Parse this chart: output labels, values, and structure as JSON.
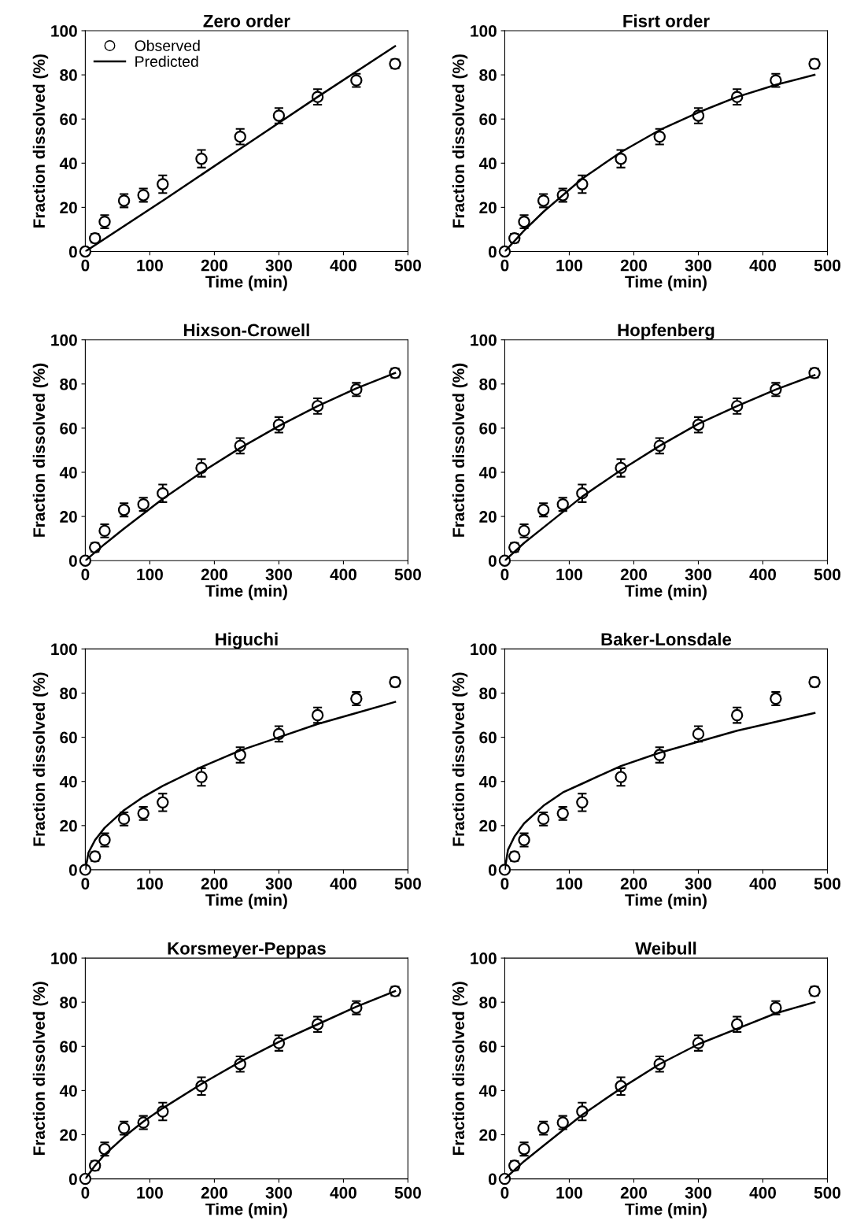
{
  "chart_data": [
    {
      "type": "line",
      "title": "Zero order",
      "xlabel": "Time (min)",
      "ylabel": "Fraction dissolved (%)",
      "xlim": [
        0,
        500
      ],
      "xticks": [
        0,
        100,
        200,
        300,
        400,
        500
      ],
      "ylim": [
        0,
        100
      ],
      "yticks": [
        0,
        20,
        40,
        60,
        80,
        100
      ],
      "grid": false,
      "legend": "top left",
      "series": [
        {
          "name": "Observed",
          "type": "scatter",
          "marker": "circle",
          "color": "#000000",
          "x": [
            0,
            15,
            30,
            60,
            90,
            120,
            180,
            240,
            300,
            360,
            420,
            480
          ],
          "values": [
            0,
            6,
            13.5,
            23,
            25.5,
            30.5,
            42,
            52,
            61.5,
            70,
            77.5,
            85
          ],
          "errors": [
            1,
            2,
            3,
            3,
            3,
            4,
            4,
            3.5,
            3.5,
            3.5,
            3,
            2
          ]
        },
        {
          "name": "Predicted",
          "marker": "none",
          "color": "#000000",
          "x": [
            0,
            120,
            240,
            360,
            480
          ],
          "values": [
            0,
            23,
            46.5,
            70,
            93
          ]
        }
      ]
    },
    {
      "type": "line",
      "title": "Fisrt order",
      "xlabel": "Time (min)",
      "ylabel": "Fraction dissolved (%)",
      "xlim": [
        0,
        500
      ],
      "xticks": [
        0,
        100,
        200,
        300,
        400,
        500
      ],
      "ylim": [
        0,
        100
      ],
      "yticks": [
        0,
        20,
        40,
        60,
        80,
        100
      ],
      "grid": false,
      "legend": false,
      "series": [
        {
          "type": "scatter",
          "marker": "circle",
          "color": "#000000",
          "x": [
            0,
            15,
            30,
            60,
            90,
            120,
            180,
            240,
            300,
            360,
            420,
            480
          ],
          "values": [
            0,
            6,
            13.5,
            23,
            25.5,
            30.5,
            42,
            52,
            61.5,
            70,
            77.5,
            85
          ],
          "errors": [
            1,
            2,
            3,
            3,
            3,
            4,
            4,
            3.5,
            3.5,
            3.5,
            3,
            2
          ]
        },
        {
          "marker": "none",
          "color": "#000000",
          "x": [
            0,
            30,
            60,
            120,
            180,
            240,
            300,
            360,
            420,
            480
          ],
          "values": [
            0,
            9.5,
            18,
            33,
            45,
            55,
            63,
            70,
            75.5,
            80
          ]
        }
      ]
    },
    {
      "type": "line",
      "title": "Hixson-Crowell",
      "xlabel": "Time (min)",
      "ylabel": "Fraction dissolved (%)",
      "xlim": [
        0,
        500
      ],
      "xticks": [
        0,
        100,
        200,
        300,
        400,
        500
      ],
      "ylim": [
        0,
        100
      ],
      "yticks": [
        0,
        20,
        40,
        60,
        80,
        100
      ],
      "grid": false,
      "legend": false,
      "series": [
        {
          "type": "scatter",
          "marker": "circle",
          "color": "#000000",
          "x": [
            0,
            15,
            30,
            60,
            90,
            120,
            180,
            240,
            300,
            360,
            420,
            480
          ],
          "values": [
            0,
            6,
            13.5,
            23,
            25.5,
            30.5,
            42,
            52,
            61.5,
            70,
            77.5,
            85
          ],
          "errors": [
            1,
            2,
            3,
            3,
            3,
            4,
            4,
            3.5,
            3.5,
            3.5,
            3,
            2
          ]
        },
        {
          "marker": "none",
          "color": "#000000",
          "x": [
            0,
            30,
            60,
            120,
            180,
            240,
            300,
            360,
            420,
            480
          ],
          "values": [
            0,
            7.5,
            14.5,
            28,
            40,
            51,
            61,
            70,
            78,
            85
          ]
        }
      ]
    },
    {
      "type": "line",
      "title": "Hopfenberg",
      "xlabel": "Time (min)",
      "ylabel": "Fraction dissolved (%)",
      "xlim": [
        0,
        500
      ],
      "xticks": [
        0,
        100,
        200,
        300,
        400,
        500
      ],
      "ylim": [
        0,
        100
      ],
      "yticks": [
        0,
        20,
        40,
        60,
        80,
        100
      ],
      "grid": false,
      "legend": false,
      "series": [
        {
          "type": "scatter",
          "marker": "circle",
          "color": "#000000",
          "x": [
            0,
            15,
            30,
            60,
            90,
            120,
            180,
            240,
            300,
            360,
            420,
            480
          ],
          "values": [
            0,
            6,
            13.5,
            23,
            25.5,
            30.5,
            42,
            52,
            61.5,
            70,
            77.5,
            85
          ],
          "errors": [
            1,
            2,
            3,
            3,
            3,
            4,
            4,
            3.5,
            3.5,
            3.5,
            3,
            2
          ]
        },
        {
          "marker": "none",
          "color": "#000000",
          "x": [
            0,
            30,
            60,
            120,
            180,
            240,
            300,
            360,
            420,
            480
          ],
          "values": [
            0,
            8,
            15,
            29,
            41,
            52,
            62,
            70,
            77.5,
            84
          ]
        }
      ]
    },
    {
      "type": "line",
      "title": "Higuchi",
      "xlabel": "Time (min)",
      "ylabel": "Fraction dissolved (%)",
      "xlim": [
        0,
        500
      ],
      "xticks": [
        0,
        100,
        200,
        300,
        400,
        500
      ],
      "ylim": [
        0,
        100
      ],
      "yticks": [
        0,
        20,
        40,
        60,
        80,
        100
      ],
      "grid": false,
      "legend": false,
      "series": [
        {
          "type": "scatter",
          "marker": "circle",
          "color": "#000000",
          "x": [
            0,
            15,
            30,
            60,
            90,
            120,
            180,
            240,
            300,
            360,
            420,
            480
          ],
          "values": [
            0,
            6,
            13.5,
            23,
            25.5,
            30.5,
            42,
            52,
            61.5,
            70,
            77.5,
            85
          ],
          "errors": [
            1,
            2,
            3,
            3,
            3,
            4,
            4,
            3.5,
            3.5,
            3.5,
            3,
            2
          ]
        },
        {
          "marker": "none",
          "color": "#000000",
          "x": [
            0,
            5,
            15,
            30,
            60,
            90,
            120,
            180,
            240,
            300,
            360,
            420,
            480
          ],
          "values": [
            0,
            7.8,
            13.4,
            19,
            27,
            33,
            38,
            46.5,
            54,
            60,
            66,
            71,
            76
          ]
        }
      ]
    },
    {
      "type": "line",
      "title": "Baker-Lonsdale",
      "xlabel": "Time (min)",
      "ylabel": "Fraction dissolved (%)",
      "xlim": [
        0,
        500
      ],
      "xticks": [
        0,
        100,
        200,
        300,
        400,
        500
      ],
      "ylim": [
        0,
        100
      ],
      "yticks": [
        0,
        20,
        40,
        60,
        80,
        100
      ],
      "grid": false,
      "legend": false,
      "series": [
        {
          "type": "scatter",
          "marker": "circle",
          "color": "#000000",
          "x": [
            0,
            15,
            30,
            60,
            90,
            120,
            180,
            240,
            300,
            360,
            420,
            480
          ],
          "values": [
            0,
            6,
            13.5,
            23,
            25.5,
            30.5,
            42,
            52,
            61.5,
            70,
            77.5,
            85
          ],
          "errors": [
            1,
            2,
            3,
            3,
            3,
            4,
            4,
            3.5,
            3.5,
            3.5,
            3,
            2
          ]
        },
        {
          "marker": "none",
          "color": "#000000",
          "x": [
            0,
            5,
            15,
            30,
            60,
            90,
            120,
            180,
            240,
            300,
            360,
            420,
            480
          ],
          "values": [
            0,
            9,
            15,
            21,
            29,
            35,
            39,
            47,
            53,
            58,
            63,
            67,
            71
          ]
        }
      ]
    },
    {
      "type": "line",
      "title": "Korsmeyer-Peppas",
      "xlabel": "Time (min)",
      "ylabel": "Fraction dissolved (%)",
      "xlim": [
        0,
        500
      ],
      "xticks": [
        0,
        100,
        200,
        300,
        400,
        500
      ],
      "ylim": [
        0,
        100
      ],
      "yticks": [
        0,
        20,
        40,
        60,
        80,
        100
      ],
      "grid": false,
      "legend": false,
      "series": [
        {
          "type": "scatter",
          "marker": "circle",
          "color": "#000000",
          "x": [
            0,
            15,
            30,
            60,
            90,
            120,
            180,
            240,
            300,
            360,
            420,
            480
          ],
          "values": [
            0,
            6,
            13.5,
            23,
            25.5,
            30.5,
            42,
            52,
            61.5,
            70,
            77.5,
            85
          ],
          "errors": [
            1,
            2,
            3,
            3,
            3,
            4,
            4,
            3.5,
            3.5,
            3.5,
            3,
            2
          ]
        },
        {
          "marker": "none",
          "color": "#000000",
          "x": [
            0,
            15,
            30,
            60,
            90,
            120,
            180,
            240,
            300,
            360,
            420,
            480
          ],
          "values": [
            0,
            6,
            11,
            19,
            26,
            32,
            43,
            53,
            62,
            70,
            78,
            85
          ]
        }
      ]
    },
    {
      "type": "line",
      "title": "Weibull",
      "xlabel": "Time (min)",
      "ylabel": "Fraction dissolved (%)",
      "xlim": [
        0,
        500
      ],
      "xticks": [
        0,
        100,
        200,
        300,
        400,
        500
      ],
      "ylim": [
        0,
        100
      ],
      "yticks": [
        0,
        20,
        40,
        60,
        80,
        100
      ],
      "grid": false,
      "legend": false,
      "series": [
        {
          "type": "scatter",
          "marker": "circle",
          "color": "#000000",
          "x": [
            0,
            15,
            30,
            60,
            90,
            120,
            180,
            240,
            300,
            360,
            420,
            480
          ],
          "values": [
            0,
            6,
            13.5,
            23,
            25.5,
            30.5,
            42,
            52,
            61.5,
            70,
            77.5,
            85
          ],
          "errors": [
            1,
            2,
            3,
            3,
            3,
            4,
            4,
            3.5,
            3.5,
            3.5,
            3,
            2
          ]
        },
        {
          "marker": "none",
          "color": "#000000",
          "x": [
            0,
            30,
            60,
            120,
            180,
            240,
            300,
            360,
            420,
            480
          ],
          "values": [
            0,
            8,
            15,
            29,
            41,
            52,
            61,
            68,
            75,
            80
          ]
        }
      ]
    }
  ]
}
